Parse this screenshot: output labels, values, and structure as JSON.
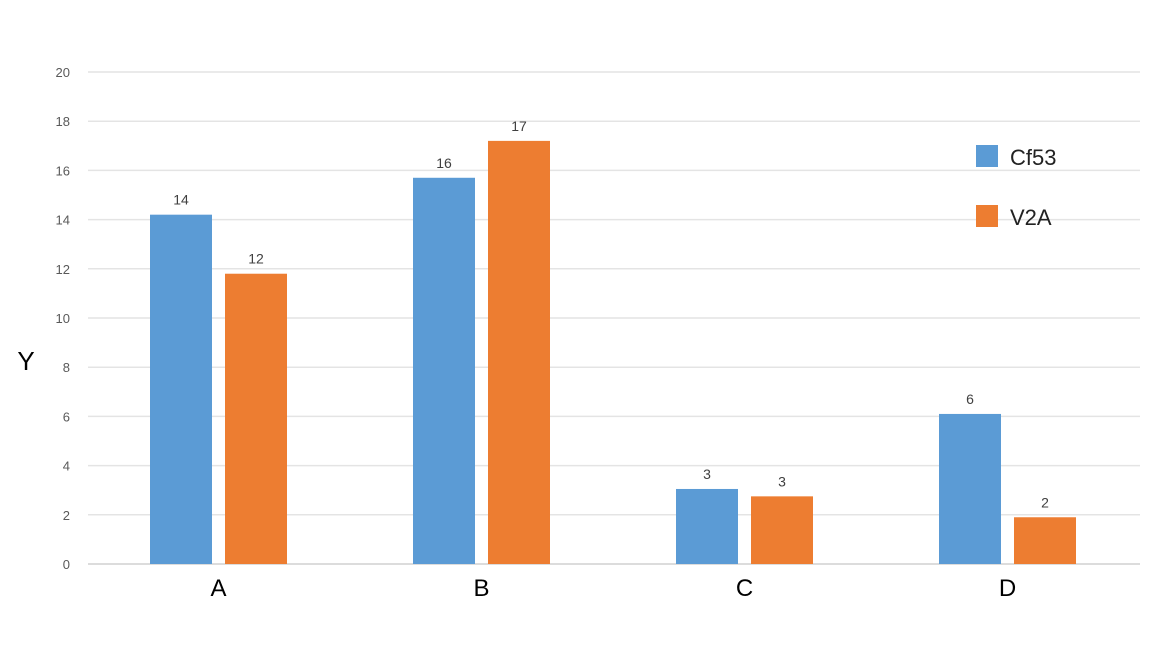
{
  "chart_data": {
    "type": "bar",
    "title": "",
    "xlabel": "",
    "ylabel": "Y",
    "ylim": [
      0,
      20
    ],
    "yticks": [
      0,
      2,
      4,
      6,
      8,
      10,
      12,
      14,
      16,
      18,
      20
    ],
    "grid": true,
    "legend_position": "right",
    "categories": [
      "A",
      "B",
      "C",
      "D"
    ],
    "series": [
      {
        "name": "Cf53",
        "color": "#5b9bd5",
        "values": [
          14.2,
          15.7,
          3.05,
          6.1
        ],
        "data_labels": [
          "14",
          "16",
          "3",
          "6"
        ]
      },
      {
        "name": "V2A",
        "color": "#ed7d31",
        "values": [
          11.8,
          17.2,
          2.75,
          1.9
        ],
        "data_labels": [
          "12",
          "17",
          "3",
          "2"
        ]
      }
    ]
  }
}
